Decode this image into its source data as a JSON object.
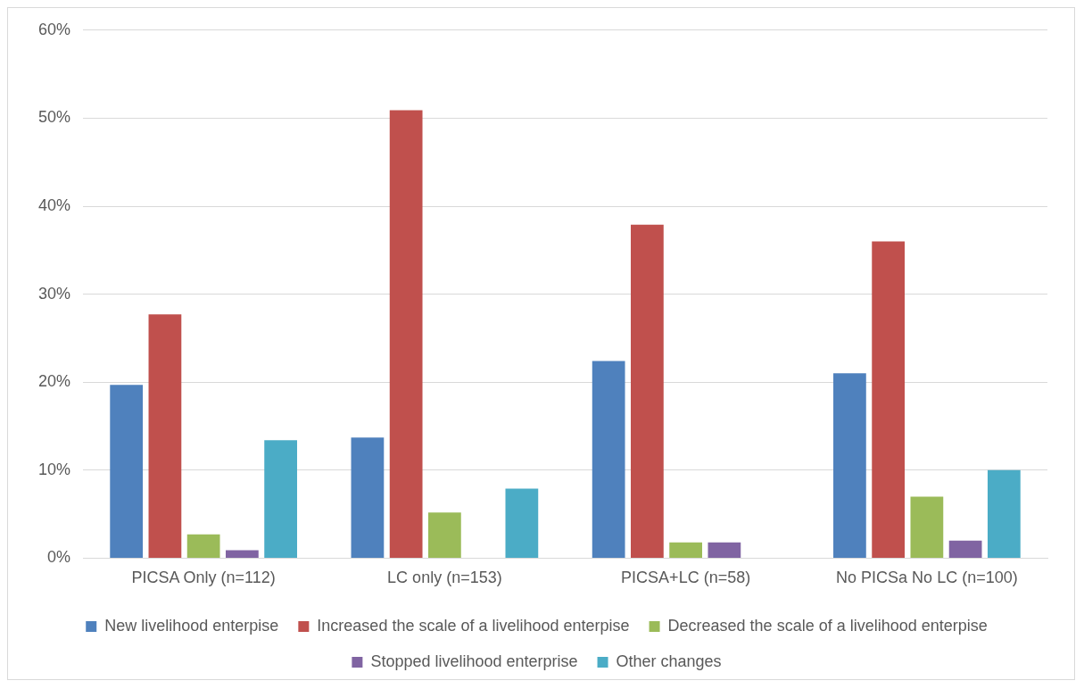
{
  "chart_data": {
    "type": "bar",
    "categories": [
      "PICSA Only (n=112)",
      "LC only (n=153)",
      "PICSA+LC (n=58)",
      "No PICSa No LC (n=100)"
    ],
    "series": [
      {
        "name": "New livelihood enterpise",
        "color": "#4f81bd",
        "values": [
          19.7,
          13.7,
          22.4,
          21.0
        ]
      },
      {
        "name": "Increased the scale of a livelihood enterpise",
        "color": "#c0504d",
        "values": [
          27.7,
          50.9,
          37.9,
          36.0
        ]
      },
      {
        "name": "Decreased the scale of a livelihood enterpise",
        "color": "#9bbb59",
        "values": [
          2.7,
          5.2,
          1.8,
          7.0
        ]
      },
      {
        "name": "Stopped livelihood enterprise",
        "color": "#8064a2",
        "values": [
          0.9,
          0,
          1.8,
          2.0
        ]
      },
      {
        "name": "Other changes",
        "color": "#4bacc6",
        "values": [
          13.4,
          7.9,
          0,
          10.0
        ]
      }
    ],
    "ylim": [
      0,
      60
    ],
    "yticks": [
      {
        "value": 0,
        "label": "0%"
      },
      {
        "value": 10,
        "label": "10%"
      },
      {
        "value": 20,
        "label": "20%"
      },
      {
        "value": 30,
        "label": "30%"
      },
      {
        "value": 40,
        "label": "40%"
      },
      {
        "value": 50,
        "label": "50%"
      },
      {
        "value": 60,
        "label": "60%"
      }
    ],
    "grid": "y",
    "legend": "bottom"
  }
}
